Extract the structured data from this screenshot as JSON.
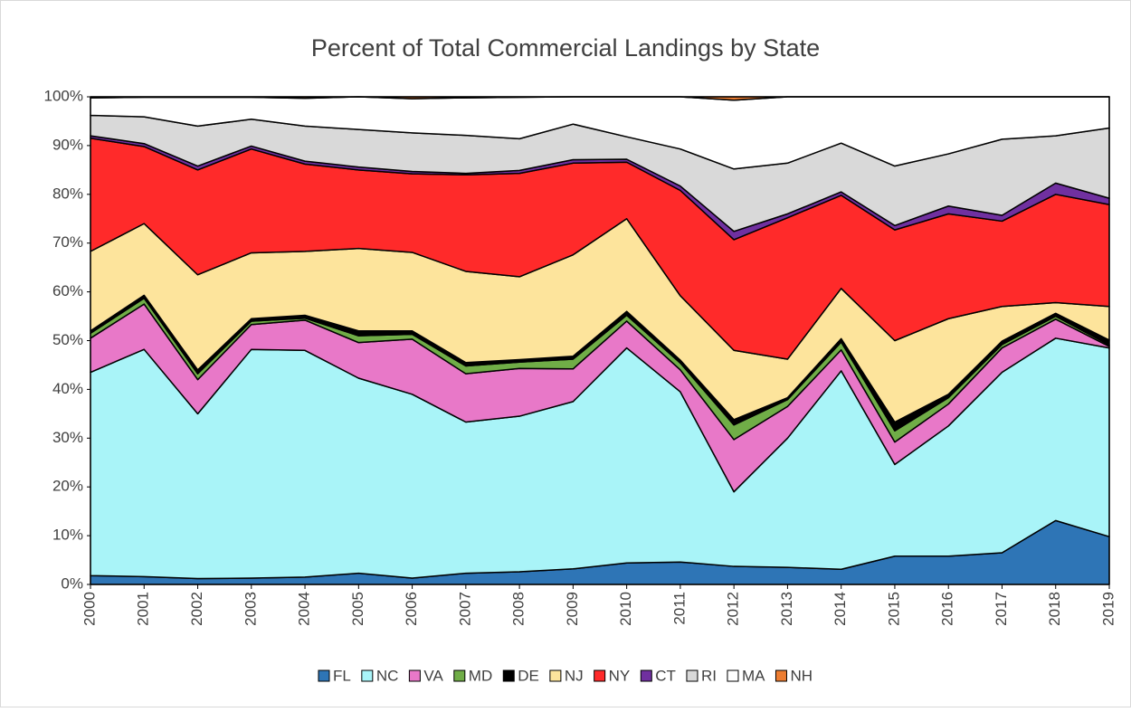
{
  "chart_data": {
    "type": "stacked_area",
    "title": "Percent of Total Commercial Landings by State",
    "x": [
      2000,
      2001,
      2002,
      2003,
      2004,
      2005,
      2006,
      2007,
      2008,
      2009,
      2010,
      2011,
      2012,
      2013,
      2014,
      2015,
      2016,
      2017,
      2018,
      2019
    ],
    "xlim": [
      2000,
      2019
    ],
    "ylim": [
      0,
      100
    ],
    "yticks": [
      {
        "value": 0,
        "label": "0%"
      },
      {
        "value": 10,
        "label": "10%"
      },
      {
        "value": 20,
        "label": "20%"
      },
      {
        "value": 30,
        "label": "30%"
      },
      {
        "value": 40,
        "label": "40%"
      },
      {
        "value": 50,
        "label": "50%"
      },
      {
        "value": 60,
        "label": "60%"
      },
      {
        "value": 70,
        "label": "70%"
      },
      {
        "value": 80,
        "label": "80%"
      },
      {
        "value": 90,
        "label": "90%"
      },
      {
        "value": 100,
        "label": "100%"
      }
    ],
    "grid": false,
    "legend": "bottom",
    "series": [
      {
        "name": "FL",
        "color": "#2e75b6",
        "values": [
          1.8,
          1.6,
          1.2,
          1.3,
          1.5,
          2.3,
          1.3,
          2.3,
          2.6,
          3.2,
          4.4,
          4.6,
          3.7,
          3.5,
          3.1,
          5.8,
          5.8,
          6.5,
          13.1,
          9.8
        ]
      },
      {
        "name": "NC",
        "color": "#a9f4f8",
        "values": [
          41.7,
          46.6,
          33.8,
          46.9,
          46.5,
          40.0,
          37.7,
          31.0,
          31.9,
          34.3,
          44.1,
          34.9,
          15.3,
          26.5,
          40.7,
          18.8,
          26.7,
          37.0,
          37.4,
          38.7
        ]
      },
      {
        "name": "VA",
        "color": "#e878c8",
        "values": [
          7.0,
          9.3,
          7.0,
          5.1,
          6.2,
          7.3,
          11.3,
          9.9,
          9.8,
          6.7,
          5.5,
          4.5,
          10.7,
          6.5,
          4.3,
          4.6,
          4.5,
          5.0,
          3.9,
          0.3
        ]
      },
      {
        "name": "MD",
        "color": "#70ad47",
        "values": [
          1.0,
          1.2,
          1.2,
          0.7,
          0.4,
          1.4,
          1.0,
          1.6,
          1.3,
          2.0,
          1.2,
          1.4,
          3.0,
          1.4,
          1.6,
          2.3,
          1.3,
          0.7,
          0.6,
          0.3
        ]
      },
      {
        "name": "DE",
        "color": "#000000",
        "values": [
          0.5,
          0.6,
          0.8,
          0.5,
          0.6,
          1.0,
          0.7,
          0.7,
          0.5,
          0.6,
          0.8,
          0.6,
          1.1,
          0.4,
          0.7,
          1.8,
          0.7,
          0.7,
          0.6,
          1.0
        ]
      },
      {
        "name": "NJ",
        "color": "#fde49c",
        "values": [
          16.3,
          14.7,
          19.5,
          13.5,
          13.1,
          16.9,
          16.1,
          18.7,
          17.0,
          20.8,
          19.0,
          13.2,
          14.2,
          7.9,
          10.3,
          16.7,
          15.5,
          7.1,
          2.2,
          6.9
        ]
      },
      {
        "name": "NY",
        "color": "#ff2a2a",
        "values": [
          23.2,
          15.8,
          21.5,
          21.3,
          17.9,
          16.1,
          16.1,
          19.8,
          21.2,
          18.8,
          11.6,
          21.6,
          22.7,
          29.0,
          19.1,
          22.7,
          21.5,
          17.5,
          22.2,
          20.9
        ]
      },
      {
        "name": "CT",
        "color": "#7030a0",
        "values": [
          0.5,
          0.6,
          0.8,
          0.6,
          0.6,
          0.6,
          0.5,
          0.3,
          0.6,
          0.7,
          0.6,
          0.9,
          1.7,
          0.8,
          0.7,
          0.9,
          1.6,
          1.2,
          2.3,
          1.3
        ]
      },
      {
        "name": "RI",
        "color": "#d9d9d9",
        "values": [
          4.2,
          5.5,
          8.2,
          5.5,
          7.2,
          7.7,
          7.9,
          7.8,
          6.5,
          7.3,
          4.6,
          7.6,
          12.8,
          10.4,
          10.0,
          12.2,
          10.7,
          15.6,
          9.7,
          14.4
        ]
      },
      {
        "name": "MA",
        "color": "#ffffff",
        "values": [
          3.6,
          4.0,
          5.9,
          4.5,
          5.7,
          6.7,
          7.0,
          7.7,
          8.5,
          5.6,
          8.2,
          10.7,
          14.1,
          13.6,
          9.5,
          14.2,
          11.7,
          8.7,
          8.0,
          6.4
        ]
      },
      {
        "name": "NH",
        "color": "#ed7d31",
        "values": [
          0.2,
          0.1,
          0.1,
          0.1,
          0.3,
          0,
          0.4,
          0.2,
          0.1,
          0,
          0,
          0,
          0.7,
          0,
          0,
          0,
          0,
          0,
          0,
          0
        ]
      }
    ]
  }
}
